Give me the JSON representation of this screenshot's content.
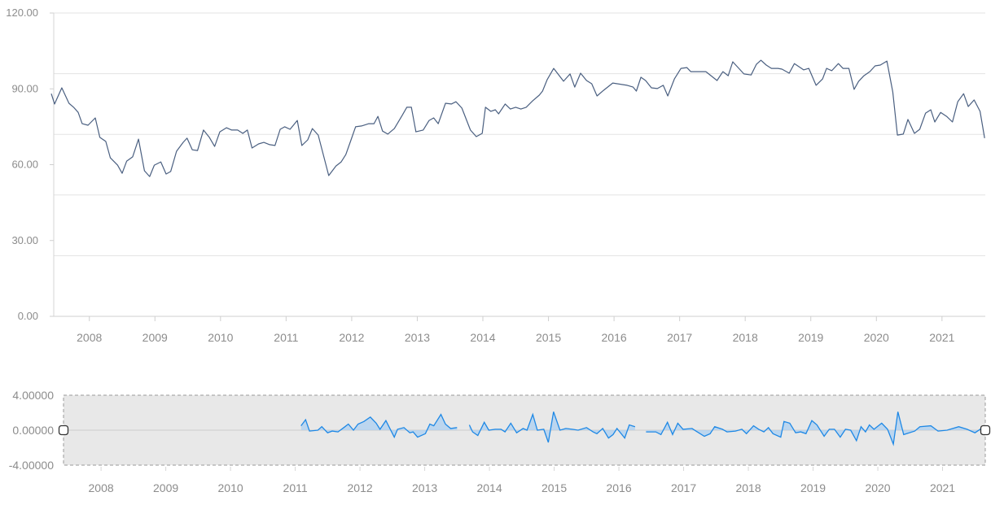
{
  "colors": {
    "main_line": "#4a5f80",
    "mini_line": "#1e88e5",
    "mini_fill": "#a9cff2",
    "grid": "#e3e3e3",
    "label": "#8c8c8c",
    "mini_bg": "#e8e8e8"
  },
  "chart_data": [
    {
      "type": "line",
      "name": "main",
      "xlabel": "",
      "ylabel": "",
      "xlim": [
        2007.42,
        2021.66
      ],
      "ylim": [
        0,
        120
      ],
      "y_ticks": [
        "0.00",
        "30.00",
        "60.00",
        "90.00",
        "120.00"
      ],
      "y_tick_values": [
        0,
        30,
        60,
        90,
        120
      ],
      "x_ticks": [
        "2008",
        "2009",
        "2010",
        "2011",
        "2012",
        "2013",
        "2014",
        "2015",
        "2016",
        "2017",
        "2018",
        "2019",
        "2020",
        "2021"
      ],
      "grid": true,
      "points": [
        [
          2007.42,
          88.1
        ],
        [
          2007.47,
          84.0
        ],
        [
          2007.58,
          90.4
        ],
        [
          2007.69,
          84.3
        ],
        [
          2007.76,
          82.7
        ],
        [
          2007.83,
          80.7
        ],
        [
          2007.89,
          76.2
        ],
        [
          2007.98,
          75.6
        ],
        [
          2008.09,
          78.5
        ],
        [
          2008.16,
          70.8
        ],
        [
          2008.25,
          69.2
        ],
        [
          2008.32,
          62.7
        ],
        [
          2008.43,
          59.8
        ],
        [
          2008.5,
          56.6
        ],
        [
          2008.57,
          61.4
        ],
        [
          2008.66,
          63.1
        ],
        [
          2008.75,
          70.1
        ],
        [
          2008.84,
          57.6
        ],
        [
          2008.92,
          55.3
        ],
        [
          2008.99,
          59.8
        ],
        [
          2009.09,
          61.1
        ],
        [
          2009.17,
          56.3
        ],
        [
          2009.24,
          57.3
        ],
        [
          2009.33,
          65.3
        ],
        [
          2009.43,
          68.8
        ],
        [
          2009.49,
          70.5
        ],
        [
          2009.57,
          65.9
        ],
        [
          2009.65,
          65.6
        ],
        [
          2009.74,
          73.7
        ],
        [
          2009.83,
          70.8
        ],
        [
          2009.91,
          67.2
        ],
        [
          2009.99,
          73.0
        ],
        [
          2010.09,
          74.6
        ],
        [
          2010.17,
          73.7
        ],
        [
          2010.26,
          73.7
        ],
        [
          2010.34,
          72.4
        ],
        [
          2010.41,
          73.7
        ],
        [
          2010.48,
          66.6
        ],
        [
          2010.58,
          68.2
        ],
        [
          2010.66,
          68.8
        ],
        [
          2010.75,
          67.9
        ],
        [
          2010.83,
          67.6
        ],
        [
          2010.91,
          74.0
        ],
        [
          2010.98,
          75.0
        ],
        [
          2011.06,
          74.0
        ],
        [
          2011.17,
          77.5
        ],
        [
          2011.24,
          67.6
        ],
        [
          2011.33,
          69.8
        ],
        [
          2011.4,
          74.3
        ],
        [
          2011.49,
          71.7
        ],
        [
          2011.65,
          55.7
        ],
        [
          2011.76,
          59.5
        ],
        [
          2011.84,
          61.1
        ],
        [
          2011.91,
          64.0
        ],
        [
          2011.99,
          69.8
        ],
        [
          2012.06,
          75.0
        ],
        [
          2012.15,
          75.3
        ],
        [
          2012.26,
          76.2
        ],
        [
          2012.34,
          76.2
        ],
        [
          2012.4,
          79.1
        ],
        [
          2012.47,
          73.3
        ],
        [
          2012.55,
          72.1
        ],
        [
          2012.65,
          74.3
        ],
        [
          2012.77,
          79.5
        ],
        [
          2012.84,
          82.7
        ],
        [
          2012.91,
          82.7
        ],
        [
          2012.98,
          73.0
        ],
        [
          2013.09,
          73.7
        ],
        [
          2013.18,
          77.5
        ],
        [
          2013.25,
          78.5
        ],
        [
          2013.32,
          76.2
        ],
        [
          2013.43,
          84.3
        ],
        [
          2013.52,
          84.0
        ],
        [
          2013.59,
          84.9
        ],
        [
          2013.68,
          82.4
        ],
        [
          2013.81,
          73.7
        ],
        [
          2013.9,
          71.1
        ],
        [
          2013.99,
          72.4
        ],
        [
          2014.04,
          82.7
        ],
        [
          2014.12,
          81.1
        ],
        [
          2014.19,
          81.7
        ],
        [
          2014.24,
          80.1
        ],
        [
          2014.34,
          84.0
        ],
        [
          2014.42,
          82.0
        ],
        [
          2014.5,
          82.7
        ],
        [
          2014.58,
          82.0
        ],
        [
          2014.66,
          82.7
        ],
        [
          2014.76,
          85.3
        ],
        [
          2014.86,
          87.5
        ],
        [
          2014.91,
          89.1
        ],
        [
          2014.98,
          93.6
        ],
        [
          2015.08,
          98.1
        ],
        [
          2015.23,
          93.0
        ],
        [
          2015.33,
          95.9
        ],
        [
          2015.4,
          90.7
        ],
        [
          2015.49,
          96.2
        ],
        [
          2015.58,
          93.3
        ],
        [
          2015.66,
          92.0
        ],
        [
          2015.74,
          87.2
        ],
        [
          2015.84,
          89.4
        ],
        [
          2015.98,
          92.3
        ],
        [
          2016.2,
          91.4
        ],
        [
          2016.29,
          90.7
        ],
        [
          2016.34,
          89.1
        ],
        [
          2016.41,
          94.6
        ],
        [
          2016.48,
          93.3
        ],
        [
          2016.57,
          90.4
        ],
        [
          2016.66,
          90.1
        ],
        [
          2016.75,
          91.4
        ],
        [
          2016.82,
          87.2
        ],
        [
          2016.92,
          93.9
        ],
        [
          2017.02,
          98.1
        ],
        [
          2017.11,
          98.4
        ],
        [
          2017.17,
          96.8
        ],
        [
          2017.27,
          96.8
        ],
        [
          2017.4,
          96.8
        ],
        [
          2017.57,
          93.3
        ],
        [
          2017.66,
          96.8
        ],
        [
          2017.74,
          95.2
        ],
        [
          2017.81,
          100.7
        ],
        [
          2017.98,
          95.9
        ],
        [
          2018.09,
          95.5
        ],
        [
          2018.17,
          99.7
        ],
        [
          2018.24,
          101.3
        ],
        [
          2018.32,
          99.4
        ],
        [
          2018.4,
          98.1
        ],
        [
          2018.5,
          98.1
        ],
        [
          2018.56,
          97.8
        ],
        [
          2018.67,
          96.2
        ],
        [
          2018.75,
          100.0
        ],
        [
          2018.89,
          97.5
        ],
        [
          2018.97,
          98.1
        ],
        [
          2019.08,
          91.4
        ],
        [
          2019.18,
          93.9
        ],
        [
          2019.24,
          98.1
        ],
        [
          2019.32,
          97.2
        ],
        [
          2019.42,
          100.0
        ],
        [
          2019.49,
          98.1
        ],
        [
          2019.58,
          98.1
        ],
        [
          2019.66,
          89.8
        ],
        [
          2019.73,
          93.0
        ],
        [
          2019.81,
          95.2
        ],
        [
          2019.9,
          96.8
        ],
        [
          2019.98,
          99.1
        ],
        [
          2020.06,
          99.4
        ],
        [
          2020.16,
          101.0
        ],
        [
          2020.25,
          88.8
        ],
        [
          2020.32,
          71.7
        ],
        [
          2020.41,
          72.1
        ],
        [
          2020.48,
          77.9
        ],
        [
          2020.58,
          72.4
        ],
        [
          2020.66,
          74.0
        ],
        [
          2020.75,
          80.4
        ],
        [
          2020.83,
          81.7
        ],
        [
          2020.89,
          76.9
        ],
        [
          2020.98,
          80.7
        ],
        [
          2021.07,
          79.1
        ],
        [
          2021.16,
          76.9
        ],
        [
          2021.24,
          84.9
        ],
        [
          2021.33,
          88.1
        ],
        [
          2021.4,
          83.0
        ],
        [
          2021.49,
          85.6
        ],
        [
          2021.58,
          81.1
        ],
        [
          2021.65,
          70.5
        ]
      ]
    },
    {
      "type": "area",
      "name": "data-zoom-preview",
      "xlim": [
        2007.42,
        2021.66
      ],
      "ylim": [
        -4,
        4
      ],
      "y_ticks": [
        "-4.00000",
        "0.00000",
        "4.00000"
      ],
      "y_tick_values": [
        -4,
        0,
        4
      ],
      "x_ticks": [
        "2008",
        "2009",
        "2010",
        "2011",
        "2012",
        "2013",
        "2014",
        "2015",
        "2016",
        "2017",
        "2018",
        "2019",
        "2020",
        "2021"
      ],
      "selection_range": [
        0,
        100
      ],
      "segments": [
        [
          [
            2011.09,
            0.5
          ],
          [
            2011.16,
            1.2
          ],
          [
            2011.22,
            -0.1
          ],
          [
            2011.35,
            0.0
          ],
          [
            2011.41,
            0.4
          ],
          [
            2011.5,
            -0.3
          ],
          [
            2011.57,
            -0.1
          ],
          [
            2011.66,
            -0.2
          ],
          [
            2011.75,
            0.3
          ],
          [
            2011.82,
            0.7
          ],
          [
            2011.9,
            0.0
          ],
          [
            2011.97,
            0.7
          ],
          [
            2012.06,
            1.0
          ],
          [
            2012.16,
            1.5
          ],
          [
            2012.25,
            0.8
          ],
          [
            2012.31,
            0.1
          ],
          [
            2012.4,
            1.1
          ],
          [
            2012.53,
            -0.8
          ],
          [
            2012.58,
            0.1
          ],
          [
            2012.68,
            0.3
          ],
          [
            2012.77,
            -0.3
          ],
          [
            2012.82,
            -0.2
          ],
          [
            2012.89,
            -0.8
          ],
          [
            2013.01,
            -0.4
          ],
          [
            2013.08,
            0.7
          ],
          [
            2013.14,
            0.5
          ],
          [
            2013.25,
            1.8
          ],
          [
            2013.32,
            0.7
          ],
          [
            2013.4,
            0.2
          ],
          [
            2013.5,
            0.3
          ]
        ],
        [
          [
            2013.69,
            0.6
          ],
          [
            2013.74,
            -0.2
          ],
          [
            2013.82,
            -0.6
          ],
          [
            2013.92,
            0.9
          ],
          [
            2013.99,
            0.0
          ],
          [
            2014.09,
            0.1
          ],
          [
            2014.18,
            0.1
          ],
          [
            2014.24,
            -0.2
          ],
          [
            2014.33,
            0.8
          ],
          [
            2014.42,
            -0.3
          ],
          [
            2014.52,
            0.2
          ],
          [
            2014.58,
            0.0
          ],
          [
            2014.67,
            1.8
          ],
          [
            2014.74,
            0.0
          ],
          [
            2014.84,
            0.1
          ],
          [
            2014.91,
            -1.4
          ],
          [
            2014.99,
            2.1
          ],
          [
            2015.09,
            0.0
          ],
          [
            2015.18,
            0.2
          ],
          [
            2015.28,
            0.1
          ],
          [
            2015.37,
            0.0
          ],
          [
            2015.5,
            0.3
          ],
          [
            2015.6,
            -0.2
          ],
          [
            2015.66,
            -0.4
          ],
          [
            2015.75,
            0.2
          ],
          [
            2015.84,
            -0.9
          ],
          [
            2015.91,
            -0.5
          ],
          [
            2015.97,
            0.2
          ],
          [
            2016.09,
            -0.9
          ],
          [
            2016.16,
            0.6
          ],
          [
            2016.25,
            0.4
          ]
        ],
        [
          [
            2016.42,
            -0.2
          ],
          [
            2016.57,
            -0.2
          ],
          [
            2016.65,
            -0.5
          ],
          [
            2016.75,
            0.9
          ],
          [
            2016.83,
            -0.5
          ],
          [
            2016.91,
            0.8
          ],
          [
            2016.99,
            0.1
          ],
          [
            2017.13,
            0.2
          ],
          [
            2017.19,
            -0.1
          ],
          [
            2017.32,
            -0.7
          ],
          [
            2017.41,
            -0.4
          ],
          [
            2017.48,
            0.4
          ],
          [
            2017.6,
            0.1
          ],
          [
            2017.67,
            -0.2
          ],
          [
            2017.8,
            -0.1
          ],
          [
            2017.9,
            0.1
          ],
          [
            2017.97,
            -0.4
          ],
          [
            2018.08,
            0.5
          ],
          [
            2018.16,
            0.1
          ],
          [
            2018.24,
            -0.2
          ],
          [
            2018.31,
            0.3
          ],
          [
            2018.38,
            -0.4
          ],
          [
            2018.5,
            -0.8
          ],
          [
            2018.55,
            1.0
          ],
          [
            2018.64,
            0.8
          ],
          [
            2018.73,
            -0.3
          ],
          [
            2018.81,
            -0.2
          ],
          [
            2018.89,
            -0.4
          ],
          [
            2018.98,
            1.1
          ],
          [
            2019.06,
            0.6
          ],
          [
            2019.17,
            -0.7
          ],
          [
            2019.25,
            0.1
          ],
          [
            2019.33,
            0.1
          ],
          [
            2019.42,
            -0.8
          ],
          [
            2019.5,
            0.1
          ],
          [
            2019.58,
            0.0
          ],
          [
            2019.67,
            -1.2
          ],
          [
            2019.74,
            0.4
          ],
          [
            2019.81,
            -0.2
          ],
          [
            2019.87,
            0.6
          ],
          [
            2019.94,
            0.1
          ],
          [
            2020.06,
            0.8
          ],
          [
            2020.15,
            0.1
          ],
          [
            2020.24,
            -1.6
          ],
          [
            2020.31,
            2.1
          ],
          [
            2020.4,
            -0.5
          ],
          [
            2020.57,
            -0.1
          ],
          [
            2020.65,
            0.4
          ],
          [
            2020.82,
            0.5
          ],
          [
            2020.93,
            -0.1
          ],
          [
            2021.07,
            0.0
          ],
          [
            2021.25,
            0.4
          ],
          [
            2021.38,
            0.1
          ],
          [
            2021.5,
            -0.3
          ],
          [
            2021.6,
            0.2
          ]
        ]
      ]
    }
  ]
}
